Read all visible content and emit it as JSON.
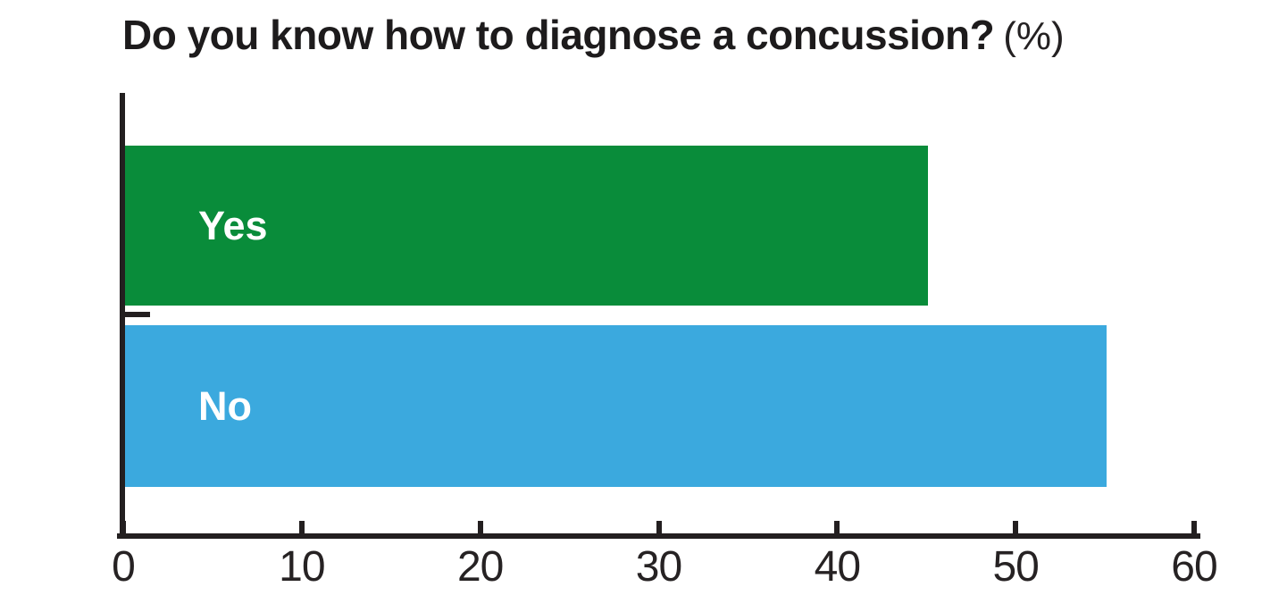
{
  "chart_data": {
    "type": "bar",
    "orientation": "horizontal",
    "title": "Do you know how to diagnose a concussion?",
    "unit_suffix": "(%)",
    "categories": [
      "Yes",
      "No"
    ],
    "values": [
      45,
      55
    ],
    "xlim": [
      0,
      60
    ],
    "xticks": [
      0,
      10,
      20,
      30,
      40,
      50,
      60
    ],
    "bar_colors": [
      "#098c3a",
      "#3ba9de"
    ],
    "bar_label_color": "#ffffff",
    "axis_color": "#231f20",
    "grid": false,
    "legend": false
  }
}
